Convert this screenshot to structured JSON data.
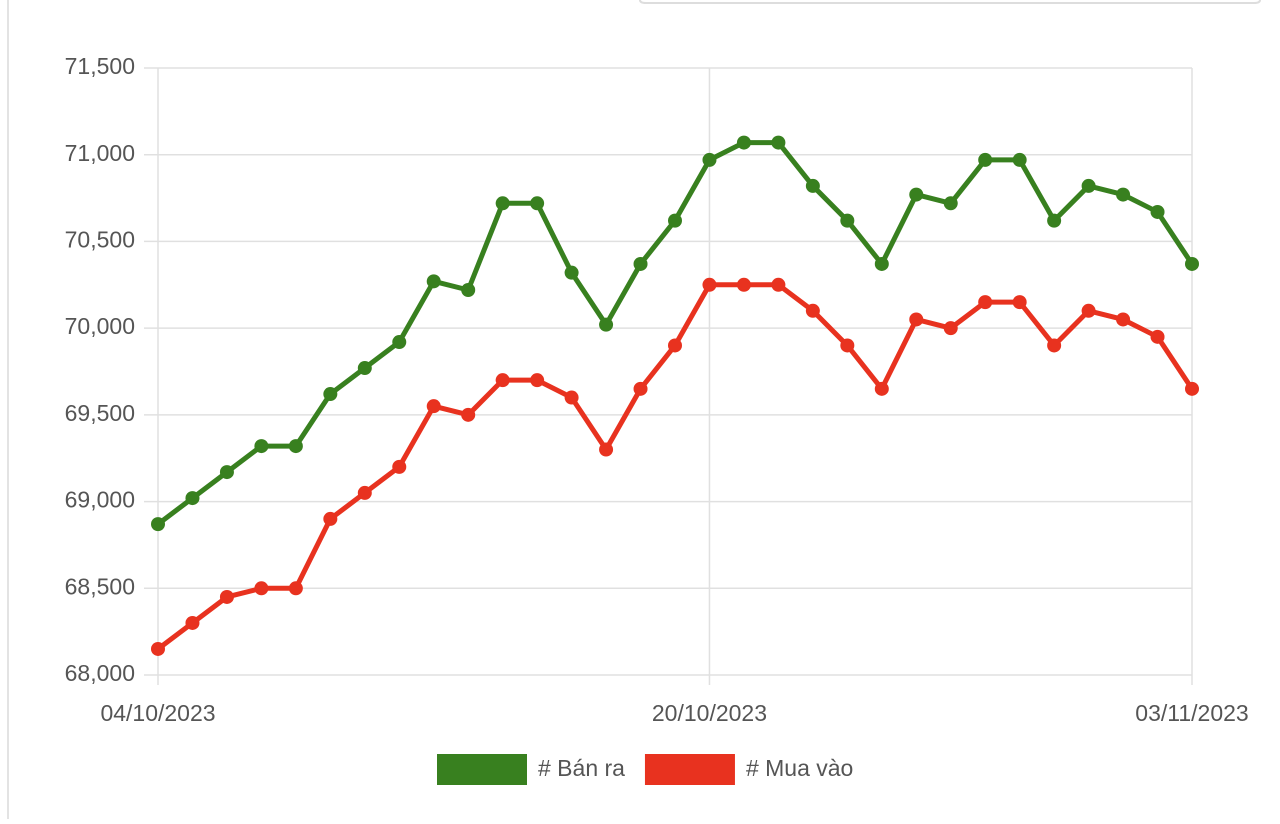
{
  "chart_data": {
    "type": "line",
    "categories": [
      "04/10/2023",
      null,
      null,
      null,
      null,
      null,
      null,
      null,
      null,
      null,
      null,
      null,
      null,
      null,
      null,
      null,
      "20/10/2023",
      null,
      null,
      null,
      null,
      null,
      null,
      null,
      null,
      null,
      null,
      null,
      null,
      null,
      "03/11/2023"
    ],
    "series": [
      {
        "name": "# Bán ra",
        "color": "#38801f",
        "values": [
          68870,
          69020,
          69170,
          69320,
          69320,
          69620,
          69770,
          69920,
          70270,
          70220,
          70720,
          70720,
          70320,
          70020,
          70370,
          70620,
          70970,
          71070,
          71070,
          70820,
          70620,
          70370,
          70770,
          70720,
          70970,
          70970,
          70620,
          70820,
          70770,
          70670,
          70370
        ]
      },
      {
        "name": "# Mua vào",
        "color": "#e8321f",
        "values": [
          68150,
          68300,
          68450,
          68500,
          68500,
          68900,
          69050,
          69200,
          69550,
          69500,
          69700,
          69700,
          69600,
          69300,
          69650,
          69900,
          70250,
          70250,
          70250,
          70100,
          69900,
          69650,
          70050,
          70000,
          70150,
          70150,
          69900,
          70100,
          70050,
          69950,
          69650
        ]
      }
    ],
    "ylim": [
      68000,
      71500
    ],
    "yticks": [
      {
        "value": 68000,
        "label": "68,000"
      },
      {
        "value": 68500,
        "label": "68,500"
      },
      {
        "value": 69000,
        "label": "69,000"
      },
      {
        "value": 69500,
        "label": "69,500"
      },
      {
        "value": 70000,
        "label": "70,000"
      },
      {
        "value": 70500,
        "label": "70,500"
      },
      {
        "value": 71000,
        "label": "71,000"
      },
      {
        "value": 71500,
        "label": "71,500"
      }
    ],
    "grid": true,
    "legend": "bottom"
  }
}
